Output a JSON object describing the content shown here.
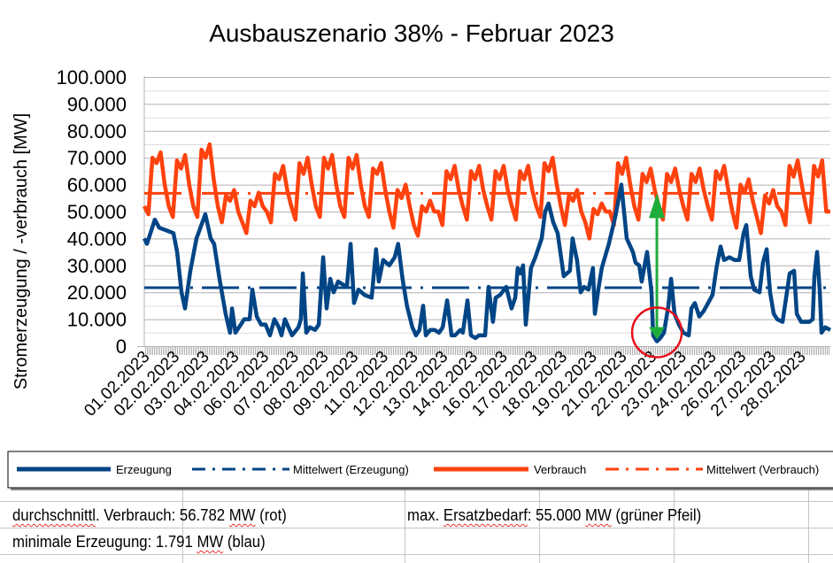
{
  "chart_data": {
    "type": "line",
    "title": "Ausbauszenario 38% - Februar 2023",
    "xlabel": "",
    "ylabel": "Stromerzeugung / -verbrauch [MW]",
    "ylim": [
      0,
      100000
    ],
    "yticks": [
      "0",
      "10.000",
      "20.000",
      "30.000",
      "40.000",
      "50.000",
      "60.000",
      "70.000",
      "80.000",
      "90.000",
      "100.000"
    ],
    "xlim_days": [
      0,
      28
    ],
    "x_tick_labels": [
      "01.02.2023",
      "02.02.2023",
      "03.02.2023",
      "04.02.2023",
      "06.02.2023",
      "07.02.2023",
      "08.02.2023",
      "09.02.2023",
      "11.02.2023",
      "12.02.2023",
      "13.02.2023",
      "14.02.2023",
      "16.02.2023",
      "17.02.2023",
      "18.02.2023",
      "19.02.2023",
      "21.02.2023",
      "22.02.2023",
      "23.02.2023",
      "24.02.2023",
      "26.02.2023",
      "27.02.2023",
      "28.02.2023"
    ],
    "grid": true,
    "legend_position": "bottom",
    "series": [
      {
        "name": "Erzeugung",
        "color": "#004586",
        "style": "solid",
        "x_unit": "days since 01.02.2023 00:00",
        "points": [
          [
            0,
            40000
          ],
          [
            0.11,
            38000
          ],
          [
            0.43,
            47000
          ],
          [
            0.61,
            44000
          ],
          [
            0.9,
            43000
          ],
          [
            1.19,
            42000
          ],
          [
            1.34,
            35000
          ],
          [
            1.52,
            20000
          ],
          [
            1.66,
            14000
          ],
          [
            1.88,
            28000
          ],
          [
            2.13,
            40000
          ],
          [
            2.49,
            49000
          ],
          [
            2.71,
            40000
          ],
          [
            2.85,
            38000
          ],
          [
            3.07,
            25000
          ],
          [
            3.32,
            12000
          ],
          [
            3.5,
            5000
          ],
          [
            3.58,
            14000
          ],
          [
            3.72,
            5000
          ],
          [
            3.94,
            8000
          ],
          [
            4.08,
            10000
          ],
          [
            4.3,
            10000
          ],
          [
            4.41,
            21000
          ],
          [
            4.59,
            11000
          ],
          [
            4.77,
            8000
          ],
          [
            4.95,
            8000
          ],
          [
            5.13,
            4000
          ],
          [
            5.31,
            10000
          ],
          [
            5.49,
            7000
          ],
          [
            5.6,
            4000
          ],
          [
            5.74,
            10000
          ],
          [
            6.03,
            4000
          ],
          [
            6.29,
            7000
          ],
          [
            6.39,
            10000
          ],
          [
            6.47,
            27000
          ],
          [
            6.61,
            5000
          ],
          [
            6.76,
            7000
          ],
          [
            6.97,
            6000
          ],
          [
            7.12,
            8000
          ],
          [
            7.3,
            33000
          ],
          [
            7.44,
            14000
          ],
          [
            7.59,
            25000
          ],
          [
            7.73,
            20000
          ],
          [
            7.91,
            24000
          ],
          [
            8.27,
            22000
          ],
          [
            8.42,
            38000
          ],
          [
            8.56,
            16000
          ],
          [
            8.74,
            21000
          ],
          [
            8.99,
            19000
          ],
          [
            9.28,
            18000
          ],
          [
            9.46,
            36000
          ],
          [
            9.57,
            24000
          ],
          [
            9.75,
            32000
          ],
          [
            10.0,
            30000
          ],
          [
            10.22,
            33000
          ],
          [
            10.36,
            38000
          ],
          [
            10.54,
            25000
          ],
          [
            10.72,
            15000
          ],
          [
            10.94,
            7000
          ],
          [
            11.09,
            4000
          ],
          [
            11.23,
            6000
          ],
          [
            11.38,
            15000
          ],
          [
            11.49,
            4000
          ],
          [
            11.67,
            6000
          ],
          [
            11.85,
            6000
          ],
          [
            12.03,
            5000
          ],
          [
            12.18,
            7000
          ],
          [
            12.36,
            17000
          ],
          [
            12.54,
            4000
          ],
          [
            12.68,
            4000
          ],
          [
            12.9,
            6000
          ],
          [
            13.0,
            5000
          ],
          [
            13.19,
            17000
          ],
          [
            13.33,
            4000
          ],
          [
            13.51,
            3000
          ],
          [
            13.66,
            4000
          ],
          [
            13.91,
            4000
          ],
          [
            14.05,
            22000
          ],
          [
            14.23,
            9000
          ],
          [
            14.34,
            18000
          ],
          [
            14.52,
            19000
          ],
          [
            14.77,
            22000
          ],
          [
            14.99,
            14000
          ],
          [
            15.14,
            18000
          ],
          [
            15.24,
            29000
          ],
          [
            15.35,
            27000
          ],
          [
            15.46,
            30000
          ],
          [
            15.57,
            8000
          ],
          [
            15.78,
            29000
          ],
          [
            15.96,
            33000
          ],
          [
            16.22,
            40000
          ],
          [
            16.36,
            50000
          ],
          [
            16.5,
            53000
          ],
          [
            16.69,
            46000
          ],
          [
            16.87,
            42000
          ],
          [
            17.12,
            26000
          ],
          [
            17.37,
            28000
          ],
          [
            17.48,
            40000
          ],
          [
            17.66,
            32000
          ],
          [
            17.81,
            20000
          ],
          [
            17.95,
            22000
          ],
          [
            18.13,
            21000
          ],
          [
            18.31,
            29000
          ],
          [
            18.39,
            12000
          ],
          [
            18.53,
            21000
          ],
          [
            18.67,
            29000
          ],
          [
            18.96,
            38000
          ],
          [
            19.22,
            48000
          ],
          [
            19.47,
            60000
          ],
          [
            19.69,
            40000
          ],
          [
            19.94,
            35000
          ],
          [
            20.05,
            31000
          ],
          [
            20.2,
            30000
          ],
          [
            20.3,
            24000
          ],
          [
            20.52,
            35000
          ],
          [
            20.7,
            20000
          ],
          [
            20.77,
            4000
          ],
          [
            20.92,
            1791
          ],
          [
            21.06,
            3000
          ],
          [
            21.21,
            5000
          ],
          [
            21.39,
            15000
          ],
          [
            21.5,
            25000
          ],
          [
            21.64,
            12000
          ],
          [
            21.82,
            8000
          ],
          [
            22.0,
            5000
          ],
          [
            22.22,
            4000
          ],
          [
            22.33,
            14000
          ],
          [
            22.47,
            16000
          ],
          [
            22.65,
            11000
          ],
          [
            22.83,
            13000
          ],
          [
            23.01,
            16000
          ],
          [
            23.19,
            19000
          ],
          [
            23.37,
            30000
          ],
          [
            23.52,
            37000
          ],
          [
            23.66,
            32000
          ],
          [
            23.88,
            33000
          ],
          [
            24.1,
            32000
          ],
          [
            24.28,
            32000
          ],
          [
            24.46,
            42000
          ],
          [
            24.57,
            45000
          ],
          [
            24.75,
            26000
          ],
          [
            24.89,
            21000
          ],
          [
            25.11,
            20000
          ],
          [
            25.25,
            31000
          ],
          [
            25.4,
            36000
          ],
          [
            25.54,
            20000
          ],
          [
            25.69,
            12000
          ],
          [
            25.83,
            10000
          ],
          [
            26.05,
            9000
          ],
          [
            26.34,
            27000
          ],
          [
            26.52,
            28000
          ],
          [
            26.63,
            12000
          ],
          [
            26.81,
            9000
          ],
          [
            27.14,
            9000
          ],
          [
            27.28,
            10000
          ],
          [
            27.35,
            26000
          ],
          [
            27.46,
            35000
          ],
          [
            27.57,
            20000
          ],
          [
            27.64,
            5000
          ],
          [
            27.79,
            7000
          ],
          [
            28.0,
            6000
          ]
        ]
      },
      {
        "name": "Mittelwert (Erzeugung)",
        "color": "#004586",
        "style": "dash-dot",
        "value": 21700
      },
      {
        "name": "Verbrauch",
        "color": "#ff420e",
        "style": "solid",
        "sampling": "4-hourly from 01.02.2023 00:00",
        "values": [
          52000,
          49000,
          70000,
          68000,
          72000,
          60000,
          52000,
          48000,
          69000,
          66000,
          71000,
          60000,
          52000,
          48000,
          73000,
          70000,
          75000,
          62000,
          52000,
          46000,
          56000,
          54000,
          58000,
          50000,
          46000,
          42000,
          54000,
          52000,
          57000,
          52000,
          50000,
          46000,
          64000,
          62000,
          67000,
          58000,
          52000,
          47000,
          68000,
          64000,
          70000,
          60000,
          52000,
          48000,
          70000,
          66000,
          71000,
          60000,
          52000,
          48000,
          70000,
          66000,
          71000,
          60000,
          52000,
          48000,
          66000,
          64000,
          68000,
          58000,
          50000,
          44000,
          58000,
          55000,
          60000,
          52000,
          45000,
          41000,
          52000,
          50000,
          54000,
          50000,
          50000,
          45000,
          65000,
          62000,
          67000,
          58000,
          52000,
          47000,
          65000,
          62000,
          67000,
          58000,
          52000,
          47000,
          65000,
          62000,
          67000,
          58000,
          52000,
          47000,
          65000,
          62000,
          67000,
          58000,
          52000,
          48000,
          68000,
          65000,
          70000,
          60000,
          52000,
          45000,
          56000,
          54000,
          58000,
          50000,
          46000,
          40000,
          51000,
          49000,
          53000,
          50000,
          50000,
          45000,
          68000,
          64000,
          70000,
          60000,
          52000,
          47000,
          64000,
          61000,
          66000,
          58000,
          52000,
          47000,
          64000,
          61000,
          66000,
          58000,
          52000,
          47000,
          64000,
          61000,
          66000,
          58000,
          52000,
          47000,
          65000,
          62000,
          67000,
          58000,
          50000,
          44000,
          60000,
          57000,
          62000,
          54000,
          48000,
          42000,
          56000,
          53000,
          58000,
          52000,
          50000,
          45000,
          67000,
          63000,
          69000,
          60000,
          52000,
          46000,
          67000,
          63000,
          69000,
          50000
        ]
      },
      {
        "name": "Mittelwert (Verbrauch)",
        "color": "#ff420e",
        "style": "dash-dot",
        "value": 56782
      }
    ],
    "annotations": [
      {
        "type": "arrow",
        "color": "#1ead3a",
        "x_day": 20.92,
        "from": 1791,
        "to": 56782,
        "meaning": "max. Ersatzbedarf"
      },
      {
        "type": "circle",
        "color": "#e8101a",
        "x_day": 20.92,
        "around_value": 1791,
        "meaning": "minimale Erzeugung"
      }
    ]
  },
  "notes": {
    "row1_left": {
      "a": "durchschnittl",
      "b": ". Verbrauch: 56.782 ",
      "c": "MW",
      "d": " (rot)"
    },
    "row1_right": {
      "a": "max. ",
      "b": "Ersatzbedarf",
      "c": ": 55.000 ",
      "d": "MW",
      "e": " (grüner Pfeil)"
    },
    "row2_left": {
      "a": "minimale Erzeugung: 1.791 ",
      "b": "MW",
      "c": " (blau)"
    }
  }
}
